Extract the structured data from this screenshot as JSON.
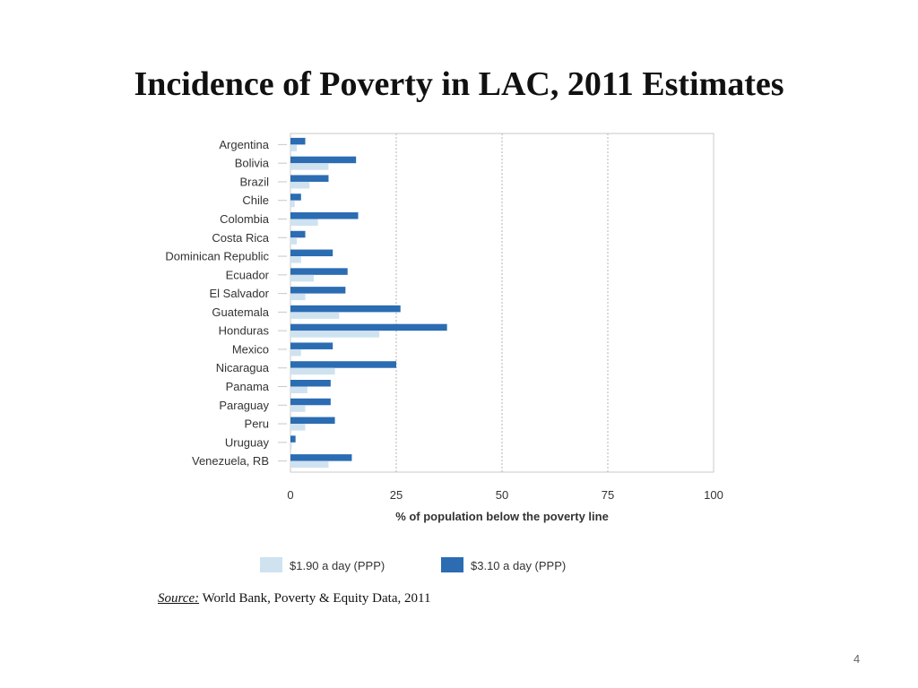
{
  "slide": {
    "title": "Incidence of Poverty in LAC, 2011 Estimates",
    "source_label": "Source:",
    "source_text": " World Bank, Poverty & Equity Data, 2011",
    "page_number": "4"
  },
  "chart_data": {
    "type": "bar",
    "orientation": "horizontal",
    "title": "",
    "xlabel": "% of population below the poverty line",
    "ylabel": "",
    "xlim": [
      0,
      100
    ],
    "xticks": [
      0,
      25,
      50,
      75,
      100
    ],
    "grid": "vertical dotted",
    "legend_position": "bottom",
    "categories": [
      "Argentina",
      "Bolivia",
      "Brazil",
      "Chile",
      "Colombia",
      "Costa Rica",
      "Dominican Republic",
      "Ecuador",
      "El Salvador",
      "Guatemala",
      "Honduras",
      "Mexico",
      "Nicaragua",
      "Panama",
      "Paraguay",
      "Peru",
      "Uruguay",
      "Venezuela, RB"
    ],
    "series": [
      {
        "name": "$1.90 a day (PPP)",
        "color": "#cfe2f0",
        "values": [
          1.5,
          9,
          4.5,
          1,
          6.5,
          1.5,
          2.5,
          5.5,
          3.5,
          11.5,
          21,
          2.5,
          10.5,
          4,
          3.5,
          3.5,
          0.3,
          9
        ]
      },
      {
        "name": "$3.10 a day (PPP)",
        "color": "#2b6cb3",
        "values": [
          3.5,
          15.5,
          9,
          2.5,
          16,
          3.5,
          10,
          13.5,
          13,
          26,
          37,
          10,
          25,
          9.5,
          9.5,
          10.5,
          1.2,
          14.5
        ]
      }
    ]
  }
}
